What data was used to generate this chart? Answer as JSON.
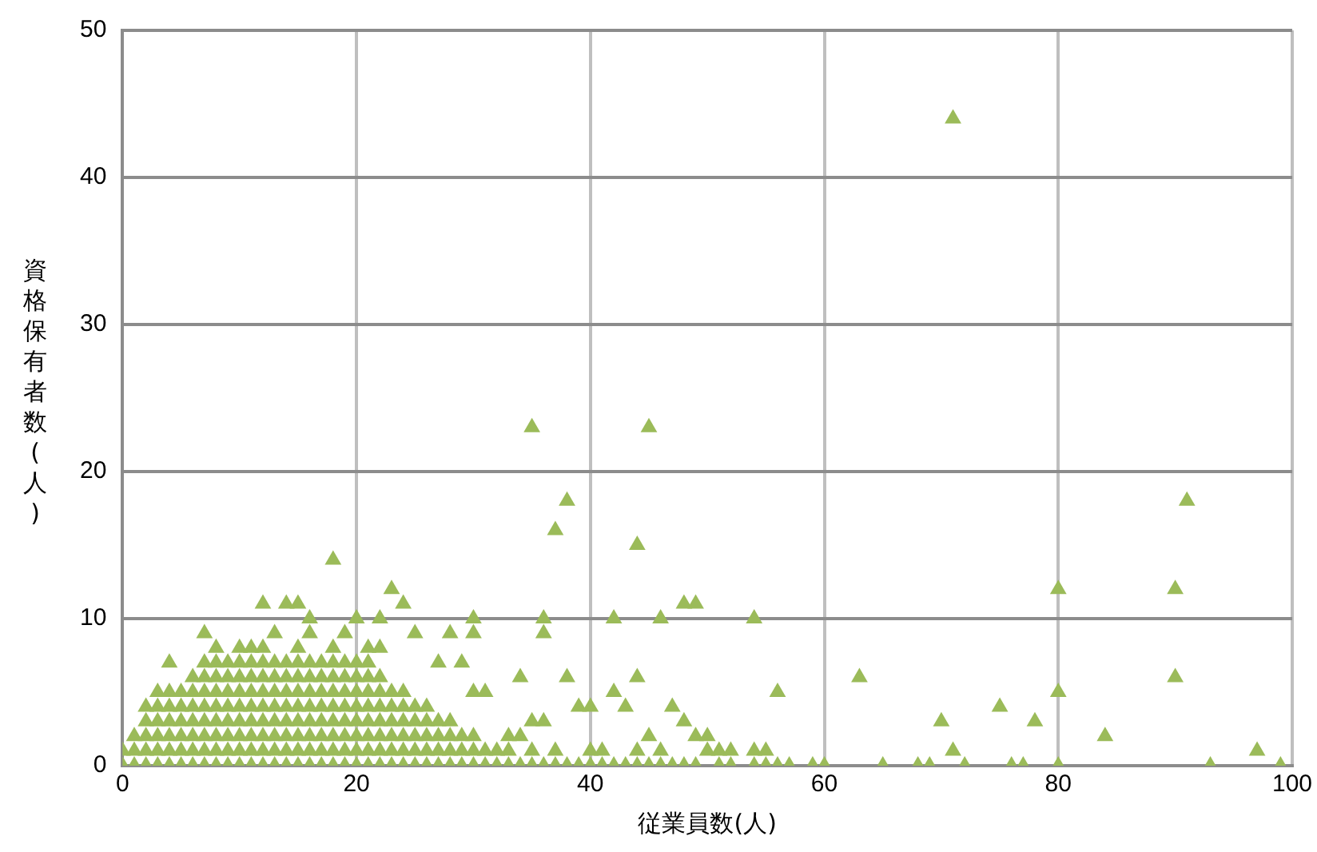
{
  "chart_data": {
    "type": "scatter",
    "xlabel": "従業員数(人)",
    "ylabel": "資格保有者数(人)",
    "xlim": [
      0,
      100
    ],
    "xticks": [
      0,
      20,
      40,
      60,
      80,
      100
    ],
    "ylim": [
      0,
      50
    ],
    "yticks": [
      0,
      10,
      20,
      30,
      40,
      50
    ],
    "grid": true,
    "legend": false,
    "marker": "triangle",
    "series": [
      {
        "color": "#9bbb59",
        "x": [
          0,
          1,
          2,
          3,
          4,
          5,
          6,
          7,
          8,
          9,
          10,
          11,
          12,
          13,
          14,
          15,
          16,
          17,
          18,
          19,
          20,
          21,
          22,
          23,
          24,
          25,
          26,
          27,
          28,
          29,
          30,
          31,
          32,
          33,
          34,
          35,
          36,
          37,
          38,
          39,
          40,
          41,
          42,
          43,
          44,
          45,
          46,
          47,
          48,
          49,
          51,
          52,
          54,
          55,
          56,
          57,
          59,
          60,
          65,
          68,
          69,
          72,
          76,
          77,
          80,
          93,
          99
        ],
        "values": [
          0,
          0,
          0,
          0,
          0,
          0,
          0,
          0,
          0,
          0,
          0,
          0,
          0,
          0,
          0,
          0,
          0,
          0,
          0,
          0,
          0,
          0,
          0,
          0,
          0,
          0,
          0,
          0,
          0,
          0,
          0,
          0,
          0,
          0,
          0,
          0,
          0,
          0,
          0,
          0,
          0,
          0,
          0,
          0,
          0,
          0,
          0,
          0,
          0,
          0,
          0,
          0,
          0,
          0,
          0,
          0,
          0,
          0,
          0,
          0,
          0,
          0,
          0,
          0,
          0,
          0,
          0
        ]
      },
      {
        "color": "#9bbb59",
        "x": [
          0,
          1,
          2,
          3,
          4,
          5,
          6,
          7,
          8,
          9,
          10,
          11,
          12,
          13,
          14,
          15,
          16,
          17,
          18,
          19,
          20,
          21,
          22,
          23,
          24,
          25,
          26,
          27,
          28,
          29,
          30,
          31,
          32,
          33,
          35,
          37,
          40,
          41,
          44,
          46,
          50,
          51,
          52,
          54,
          55,
          71,
          97
        ],
        "values": [
          1,
          1,
          1,
          1,
          1,
          1,
          1,
          1,
          1,
          1,
          1,
          1,
          1,
          1,
          1,
          1,
          1,
          1,
          1,
          1,
          1,
          1,
          1,
          1,
          1,
          1,
          1,
          1,
          1,
          1,
          1,
          1,
          1,
          1,
          1,
          1,
          1,
          1,
          1,
          1,
          1,
          1,
          1,
          1,
          1,
          1,
          1
        ]
      },
      {
        "color": "#9bbb59",
        "x": [
          1,
          2,
          3,
          4,
          5,
          6,
          7,
          8,
          9,
          10,
          11,
          12,
          13,
          14,
          15,
          16,
          17,
          18,
          19,
          20,
          21,
          22,
          23,
          24,
          25,
          26,
          27,
          28,
          29,
          30,
          33,
          34,
          45,
          49,
          50,
          84
        ],
        "values": [
          2,
          2,
          2,
          2,
          2,
          2,
          2,
          2,
          2,
          2,
          2,
          2,
          2,
          2,
          2,
          2,
          2,
          2,
          2,
          2,
          2,
          2,
          2,
          2,
          2,
          2,
          2,
          2,
          2,
          2,
          2,
          2,
          2,
          2,
          2,
          2
        ]
      },
      {
        "color": "#9bbb59",
        "x": [
          2,
          3,
          4,
          5,
          6,
          7,
          8,
          9,
          10,
          11,
          12,
          13,
          14,
          15,
          16,
          17,
          18,
          19,
          20,
          21,
          22,
          23,
          24,
          25,
          26,
          27,
          28,
          35,
          36,
          48,
          70,
          78
        ],
        "values": [
          3,
          3,
          3,
          3,
          3,
          3,
          3,
          3,
          3,
          3,
          3,
          3,
          3,
          3,
          3,
          3,
          3,
          3,
          3,
          3,
          3,
          3,
          3,
          3,
          3,
          3,
          3,
          3,
          3,
          3,
          3,
          3
        ]
      },
      {
        "color": "#9bbb59",
        "x": [
          2,
          3,
          4,
          5,
          6,
          7,
          8,
          9,
          10,
          11,
          12,
          13,
          14,
          15,
          16,
          17,
          18,
          19,
          20,
          21,
          22,
          23,
          24,
          25,
          26,
          39,
          40,
          43,
          47,
          75
        ],
        "values": [
          4,
          4,
          4,
          4,
          4,
          4,
          4,
          4,
          4,
          4,
          4,
          4,
          4,
          4,
          4,
          4,
          4,
          4,
          4,
          4,
          4,
          4,
          4,
          4,
          4,
          4,
          4,
          4,
          4,
          4
        ]
      },
      {
        "color": "#9bbb59",
        "x": [
          3,
          4,
          5,
          6,
          7,
          8,
          9,
          10,
          11,
          12,
          13,
          14,
          15,
          16,
          17,
          18,
          19,
          20,
          21,
          22,
          23,
          24,
          30,
          31,
          42,
          56,
          80
        ],
        "values": [
          5,
          5,
          5,
          5,
          5,
          5,
          5,
          5,
          5,
          5,
          5,
          5,
          5,
          5,
          5,
          5,
          5,
          5,
          5,
          5,
          5,
          5,
          5,
          5,
          5,
          5,
          5
        ]
      },
      {
        "color": "#9bbb59",
        "x": [
          6,
          7,
          8,
          9,
          10,
          11,
          12,
          13,
          14,
          15,
          16,
          17,
          18,
          19,
          20,
          21,
          22,
          34,
          38,
          44,
          63,
          90
        ],
        "values": [
          6,
          6,
          6,
          6,
          6,
          6,
          6,
          6,
          6,
          6,
          6,
          6,
          6,
          6,
          6,
          6,
          6,
          6,
          6,
          6,
          6,
          6
        ]
      },
      {
        "color": "#9bbb59",
        "x": [
          4,
          7,
          8,
          9,
          10,
          11,
          12,
          13,
          14,
          15,
          16,
          17,
          18,
          19,
          20,
          21,
          27,
          29
        ],
        "values": [
          7,
          7,
          7,
          7,
          7,
          7,
          7,
          7,
          7,
          7,
          7,
          7,
          7,
          7,
          7,
          7,
          7,
          7
        ]
      },
      {
        "color": "#9bbb59",
        "x": [
          8,
          10,
          11,
          12,
          15,
          18,
          21,
          22,
          7,
          13,
          16,
          19,
          25,
          28,
          30,
          36,
          16,
          20,
          22,
          30,
          36,
          42,
          46,
          54,
          12,
          14,
          15,
          24,
          48,
          49,
          23,
          80,
          90,
          18,
          44,
          37,
          38,
          91,
          35,
          45,
          71
        ],
        "values": [
          8,
          8,
          8,
          8,
          8,
          8,
          8,
          8,
          9,
          9,
          9,
          9,
          9,
          9,
          9,
          9,
          10,
          10,
          10,
          10,
          10,
          10,
          10,
          10,
          11,
          11,
          11,
          11,
          11,
          11,
          12,
          12,
          12,
          14,
          15,
          16,
          18,
          18,
          23,
          23,
          44
        ]
      }
    ]
  }
}
